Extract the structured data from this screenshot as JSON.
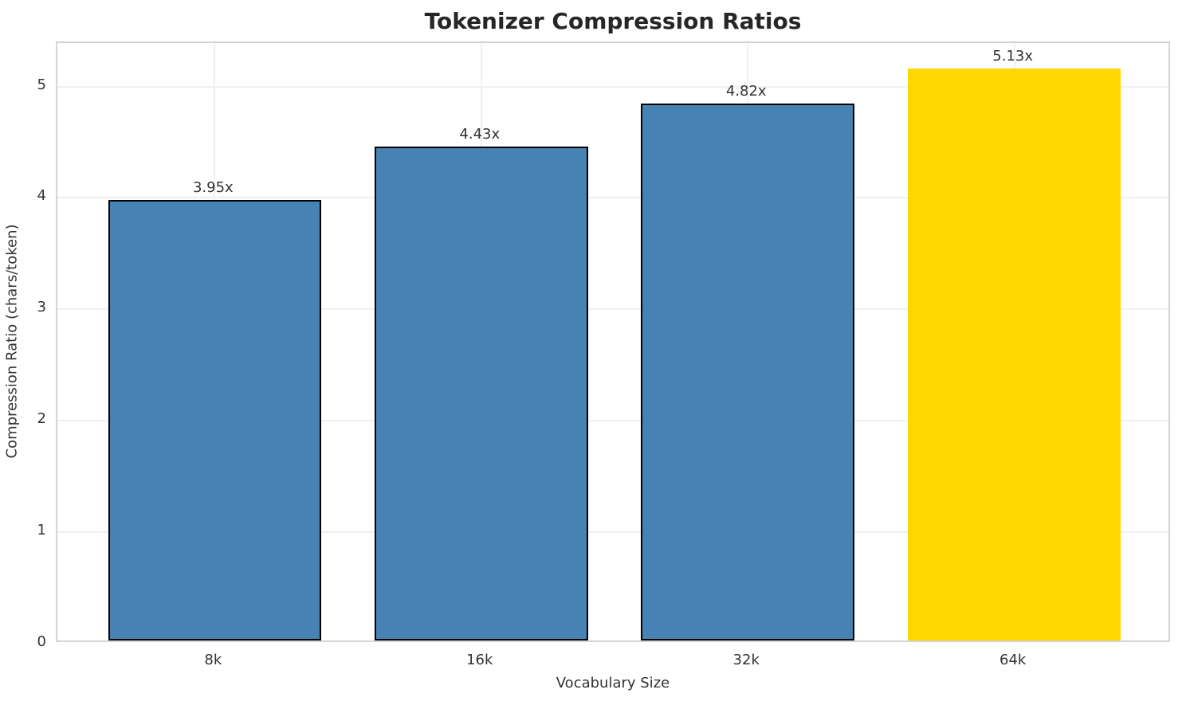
{
  "chart_data": {
    "type": "bar",
    "title": "Tokenizer Compression Ratios",
    "xlabel": "Vocabulary Size",
    "ylabel": "Compression Ratio (chars/token)",
    "categories": [
      "8k",
      "16k",
      "32k",
      "64k"
    ],
    "values": [
      3.95,
      4.43,
      4.82,
      5.13
    ],
    "bar_value_labels": [
      "3.95x",
      "4.43x",
      "4.82x",
      "5.13x"
    ],
    "yticks": [
      0,
      1,
      2,
      3,
      4,
      5
    ],
    "ylim": [
      0,
      5.39
    ],
    "grid": true,
    "legend": "none",
    "bar_colors": [
      "#4682B4",
      "#4682B4",
      "#4682B4",
      "#FFD700"
    ],
    "bar_edge_colors": [
      "#000000",
      "#000000",
      "#000000",
      "none"
    ],
    "style_colors": {
      "bar_blue": "#4682B4",
      "bar_highlight_gold": "#FFD700",
      "bar_edge": "#000000",
      "grid": "#f0f0f0",
      "spine": "#d4d4d4",
      "text": "#333333",
      "title_text": "#262626",
      "background": "#ffffff"
    }
  }
}
